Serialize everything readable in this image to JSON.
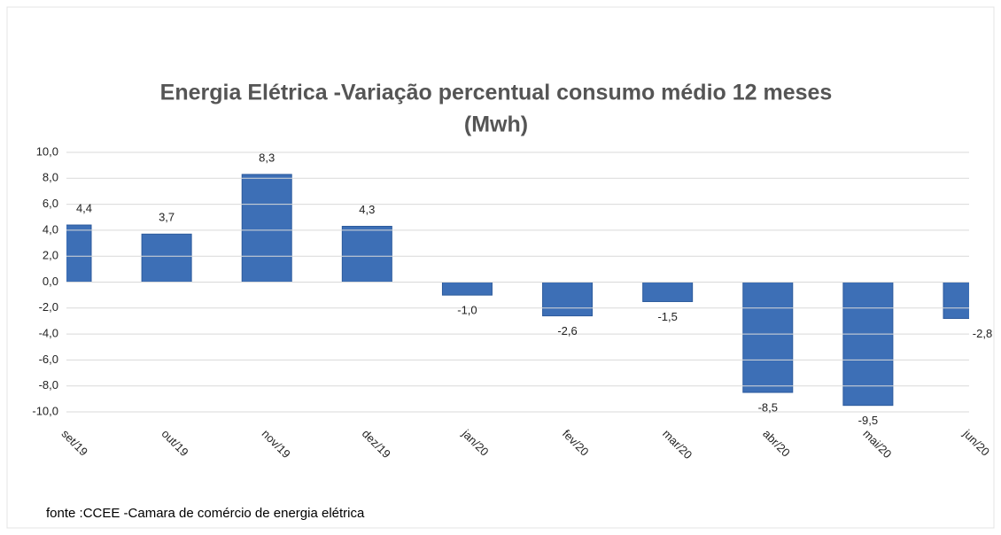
{
  "chart_data": {
    "type": "bar",
    "title": [
      "Energia Elétrica -Variação percentual consumo médio  12 meses",
      "(Mwh)"
    ],
    "source": "fonte :CCEE -Camara de comércio de energia elétrica",
    "categories": [
      "set/19",
      "out/19",
      "nov/19",
      "dez/19",
      "jan/20",
      "fev/20",
      "mar/20",
      "abr/20",
      "mai/20",
      "jun/20"
    ],
    "values": [
      4.4,
      3.7,
      8.3,
      4.3,
      -1.0,
      -2.6,
      -1.5,
      -8.5,
      -9.5,
      -2.8
    ],
    "value_labels": [
      "4,4",
      "3,7",
      "8,3",
      "4,3",
      "-1,0",
      "-2,6",
      "-1,5",
      "-8,5",
      "-9,5",
      "-2,8"
    ],
    "color": "#3d6fb6",
    "ylim": [
      -10,
      10
    ],
    "yticks": [
      {
        "value": -10,
        "label": "-10,0"
      },
      {
        "value": -8,
        "label": "-8,0"
      },
      {
        "value": -6,
        "label": "-6,0"
      },
      {
        "value": -4,
        "label": "-4,0"
      },
      {
        "value": -2,
        "label": "-2,0"
      },
      {
        "value": 0,
        "label": "0,0"
      },
      {
        "value": 2,
        "label": "2,0"
      },
      {
        "value": 4,
        "label": "4,0"
      },
      {
        "value": 6,
        "label": "6,0"
      },
      {
        "value": 8,
        "label": "8,0"
      },
      {
        "value": 10,
        "label": "10,0"
      }
    ],
    "grid": true
  }
}
